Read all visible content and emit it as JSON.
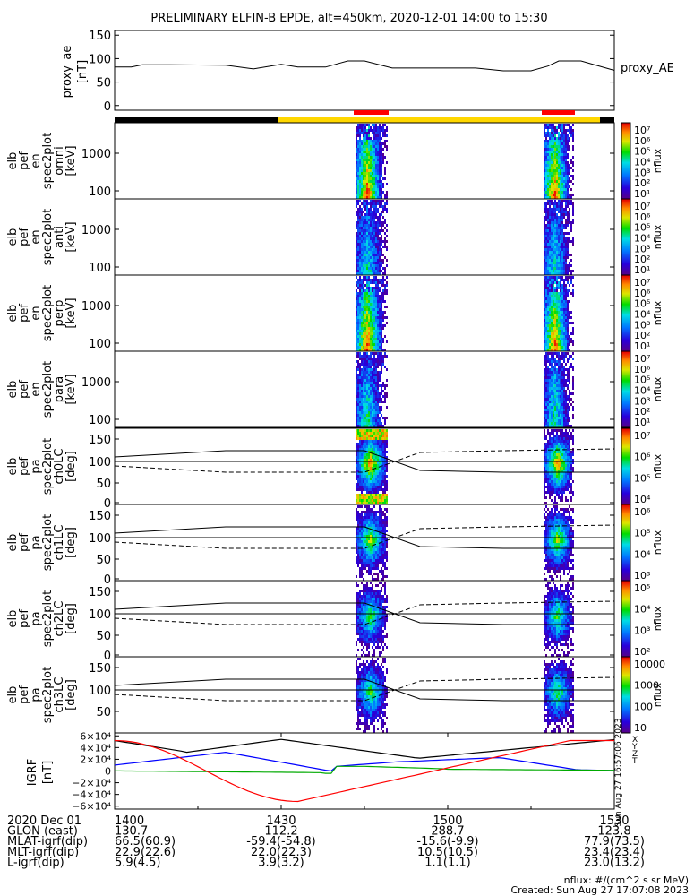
{
  "title": "PRELIMINARY ELFIN-B EPDE, alt=450km, 2020-12-01 14:00 to 15:30",
  "colors": {
    "black_bar": "#000000",
    "yellow_bar": "#ffd700",
    "red_mark": "#ff0000",
    "igrf_x": "#000000",
    "igrf_y": "#0000ff",
    "igrf_z": "#00aa00",
    "igrf_t": "#ff0000"
  },
  "chart_data": [
    {
      "type": "line",
      "ylabel_lines": [
        "proxy_ae",
        "[nT]"
      ],
      "legend": "proxy_AE",
      "yticks": [
        "150",
        "100",
        "50",
        "0"
      ],
      "ylim": [
        -10,
        160
      ],
      "x_minutes": [
        0,
        3,
        5,
        8,
        10,
        20,
        25,
        30,
        33,
        38,
        42,
        45,
        50,
        55,
        60,
        65,
        70,
        75,
        78,
        80,
        84,
        90
      ],
      "values": [
        82,
        82,
        87,
        87,
        87,
        86,
        78,
        88,
        82,
        82,
        95,
        95,
        80,
        80,
        80,
        80,
        74,
        74,
        84,
        95,
        95,
        75
      ]
    },
    {
      "type": "heatmap",
      "panel": "omni",
      "ylabel_lines": [
        "elb",
        "pef",
        "en",
        "spec2plot",
        "omni",
        "[keV]"
      ],
      "yticks": [
        "1000",
        "100"
      ],
      "cbar_ticks": [
        "10⁷",
        "10⁶",
        "10⁵",
        "10⁴",
        "10³",
        "10²",
        "10¹"
      ],
      "cbar_label": "nflux"
    },
    {
      "type": "heatmap",
      "panel": "anti",
      "ylabel_lines": [
        "elb",
        "pef",
        "en",
        "spec2plot",
        "anti",
        "[keV]"
      ],
      "yticks": [
        "1000",
        "100"
      ],
      "cbar_ticks": [
        "10⁷",
        "10⁶",
        "10⁵",
        "10⁴",
        "10³",
        "10²",
        "10¹"
      ],
      "cbar_label": "nflux"
    },
    {
      "type": "heatmap",
      "panel": "perp",
      "ylabel_lines": [
        "elb",
        "pef",
        "en",
        "spec2plot",
        "perp",
        "[keV]"
      ],
      "yticks": [
        "1000",
        "100"
      ],
      "cbar_ticks": [
        "10⁷",
        "10⁶",
        "10⁵",
        "10⁴",
        "10³",
        "10²",
        "10¹"
      ],
      "cbar_label": "nflux"
    },
    {
      "type": "heatmap",
      "panel": "para",
      "ylabel_lines": [
        "elb",
        "pef",
        "en",
        "spec2plot",
        "para",
        "[keV]"
      ],
      "yticks": [
        "1000",
        "100"
      ],
      "cbar_ticks": [
        "10⁷",
        "10⁶",
        "10⁵",
        "10⁴",
        "10³",
        "10²",
        "10¹"
      ],
      "cbar_label": "nflux"
    },
    {
      "type": "heatmap",
      "panel": "ch0LC",
      "ylabel_lines": [
        "elb",
        "pef",
        "pa",
        "spec2plot",
        "ch0LC",
        "[deg]"
      ],
      "yticks": [
        "150",
        "100",
        "50",
        "0"
      ],
      "cbar_ticks": [
        "10⁷",
        "10⁶",
        "10⁵",
        "10⁴"
      ],
      "cbar_label": "nflux"
    },
    {
      "type": "heatmap",
      "panel": "ch1LC",
      "ylabel_lines": [
        "elb",
        "pef",
        "pa",
        "spec2plot",
        "ch1LC",
        "[deg]"
      ],
      "yticks": [
        "150",
        "100",
        "50",
        "0"
      ],
      "cbar_ticks": [
        "10⁶",
        "10⁵",
        "10⁴",
        "10³"
      ],
      "cbar_label": "nflux"
    },
    {
      "type": "heatmap",
      "panel": "ch2LC",
      "ylabel_lines": [
        "elb",
        "pef",
        "pa",
        "spec2plot",
        "ch2LC",
        "[deg]"
      ],
      "yticks": [
        "150",
        "100",
        "50",
        "0"
      ],
      "cbar_ticks": [
        "10⁵",
        "10⁴",
        "10³",
        "10²"
      ],
      "cbar_label": "nflux"
    },
    {
      "type": "heatmap",
      "panel": "ch3LC",
      "ylabel_lines": [
        "elb",
        "pef",
        "pa",
        "spec2plot",
        "ch3LC",
        "[deg]"
      ],
      "yticks": [
        "150",
        "100",
        "50"
      ],
      "cbar_ticks": [
        "10000",
        "1000",
        "100",
        "10"
      ],
      "cbar_label": "nflux"
    },
    {
      "type": "line",
      "panel": "IGRF",
      "ylabel_lines": [
        "IGRF",
        "[nT]"
      ],
      "yticks": [
        "6×10⁴",
        "4×10⁴",
        "2×10⁴",
        "0",
        "−2×10⁴",
        "−4×10⁴",
        "−6×10⁴"
      ],
      "ylim": [
        -65000,
        65000
      ],
      "legend": [
        "X",
        "Y",
        "Z",
        "T"
      ],
      "side_note": "Sun Aug 27 16:57:06 2023"
    }
  ],
  "xaxis": {
    "ticks": [
      "1400",
      "1430",
      "1500",
      "1530"
    ],
    "rows": [
      {
        "name": "2020 Dec 01",
        "values": [
          "1400",
          "1430",
          "1500",
          "1530"
        ]
      },
      {
        "name": "GLON (east)",
        "values": [
          "130.7",
          "112.2",
          "288.7",
          "123.8"
        ]
      },
      {
        "name": "MLAT-igrf(dip)",
        "values": [
          "66.5(60.9)",
          "-59.4(-54.8)",
          "-15.6(-9.9)",
          "77.9(73.5)"
        ]
      },
      {
        "name": "MLT-igrf(dip)",
        "values": [
          "22.9(22.6)",
          "22.0(22.3)",
          "10.5(10.5)",
          "23.4(23.4)"
        ]
      },
      {
        "name": "L-igrf(dip)",
        "values": [
          "5.9(4.5)",
          "3.9(3.2)",
          "1.1(1.1)",
          "23.0(13.2)"
        ]
      }
    ]
  },
  "footer": {
    "units": "nflux: #/(cm^2 s sr MeV)",
    "created": "Created: Sun Aug 27 17:07:08 2023"
  }
}
